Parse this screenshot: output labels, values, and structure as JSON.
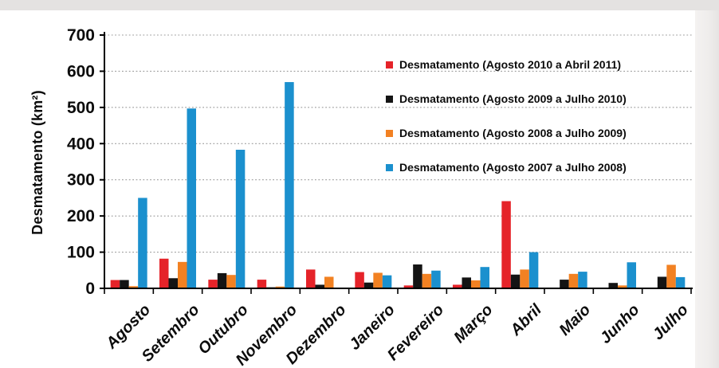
{
  "page": {
    "background_color": "#eae8e7",
    "canvas_color": "#ffffff"
  },
  "axis": {
    "y_title": "Desmatamento (km²)",
    "yticks": [
      700,
      600,
      500,
      400,
      300,
      200,
      100,
      0
    ],
    "axis_color": "#000000",
    "gridline_color": "#9b9b9b",
    "tick_label_color": "#0c0c0c"
  },
  "chart_data": {
    "type": "bar",
    "title": "",
    "xlabel": "",
    "ylabel": "Desmatamento (km²)",
    "ylim": [
      0,
      700
    ],
    "ytick_step": 100,
    "grid": "horizontal-dotted",
    "legend_position": "top-right-inside",
    "categories": [
      "Agosto",
      "Setembro",
      "Outubro",
      "Novembro",
      "Dezembro",
      "Janeiro",
      "Fevereiro",
      "Março",
      "Abril",
      "Maio",
      "Junho",
      "Julho"
    ],
    "series": [
      {
        "name": "Desmatamento (Agosto 2010 a Abril 2011)",
        "color": "#e52329",
        "values": [
          23,
          82,
          24,
          24,
          52,
          45,
          8,
          10,
          241,
          0,
          0,
          0
        ]
      },
      {
        "name": "Desmatamento (Agosto 2009 a Julho 2010)",
        "color": "#141414",
        "values": [
          23,
          28,
          42,
          3,
          10,
          16,
          66,
          30,
          38,
          24,
          15,
          32
        ]
      },
      {
        "name": "Desmatamento (Agosto 2008 a Julho 2009)",
        "color": "#f28122",
        "values": [
          6,
          73,
          37,
          5,
          32,
          43,
          40,
          22,
          52,
          40,
          8,
          65
        ]
      },
      {
        "name": "Desmatamento (Agosto 2007 a Julho 2008)",
        "color": "#1b90ce",
        "values": [
          250,
          497,
          383,
          570,
          2,
          36,
          49,
          59,
          100,
          46,
          72,
          31
        ]
      }
    ]
  }
}
